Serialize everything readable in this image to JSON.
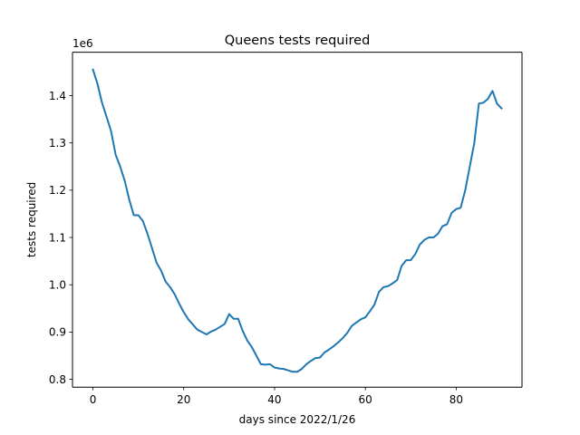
{
  "chart_data": {
    "type": "line",
    "title": "Queens tests required",
    "xlabel": "days since 2022/1/26",
    "ylabel": "tests required",
    "y_offset_label": "1e6",
    "xlim": [
      -4.5,
      94.5
    ],
    "ylim": [
      0.7835,
      1.4918
    ],
    "xticks": [
      0,
      20,
      40,
      60,
      80
    ],
    "xtick_labels": [
      "0",
      "20",
      "40",
      "60",
      "80"
    ],
    "yticks": [
      0.8,
      0.9,
      1.0,
      1.1,
      1.2,
      1.3,
      1.4
    ],
    "ytick_labels": [
      "0.8",
      "0.9",
      "1.0",
      "1.1",
      "1.2",
      "1.3",
      "1.4"
    ],
    "grid": false,
    "series": [
      {
        "color": "#1f77b4",
        "x": [
          0,
          1,
          2,
          3,
          4,
          5,
          6,
          7,
          8,
          9,
          10,
          11,
          12,
          13,
          14,
          15,
          16,
          17,
          18,
          19,
          20,
          21,
          22,
          23,
          24,
          25,
          26,
          27,
          28,
          29,
          30,
          31,
          32,
          33,
          34,
          35,
          36,
          37,
          38,
          39,
          40,
          41,
          42,
          43,
          44,
          45,
          46,
          47,
          48,
          49,
          50,
          51,
          52,
          53,
          54,
          55,
          56,
          57,
          58,
          59,
          60,
          61,
          62,
          63,
          64,
          65,
          66,
          67,
          68,
          69,
          70,
          71,
          72,
          73,
          74,
          75,
          76,
          77,
          78,
          79,
          80,
          81,
          82,
          83,
          84,
          85,
          86,
          87,
          88,
          89,
          90
        ],
        "y": [
          1.455,
          1.425,
          1.385,
          1.355,
          1.325,
          1.275,
          1.25,
          1.22,
          1.18,
          1.147,
          1.147,
          1.135,
          1.108,
          1.078,
          1.047,
          1.03,
          1.007,
          0.995,
          0.98,
          0.96,
          0.942,
          0.927,
          0.916,
          0.905,
          0.9,
          0.895,
          0.901,
          0.905,
          0.911,
          0.917,
          0.938,
          0.928,
          0.928,
          0.902,
          0.882,
          0.868,
          0.85,
          0.832,
          0.831,
          0.832,
          0.825,
          0.823,
          0.822,
          0.819,
          0.816,
          0.816,
          0.822,
          0.832,
          0.839,
          0.845,
          0.846,
          0.857,
          0.863,
          0.87,
          0.878,
          0.887,
          0.898,
          0.913,
          0.92,
          0.927,
          0.931,
          0.944,
          0.958,
          0.985,
          0.995,
          0.997,
          1.003,
          1.01,
          1.04,
          1.052,
          1.052,
          1.065,
          1.085,
          1.095,
          1.1,
          1.1,
          1.108,
          1.124,
          1.128,
          1.152,
          1.16,
          1.163,
          1.2,
          1.25,
          1.3,
          1.383,
          1.385,
          1.393,
          1.41,
          1.383,
          1.373
        ]
      }
    ]
  }
}
